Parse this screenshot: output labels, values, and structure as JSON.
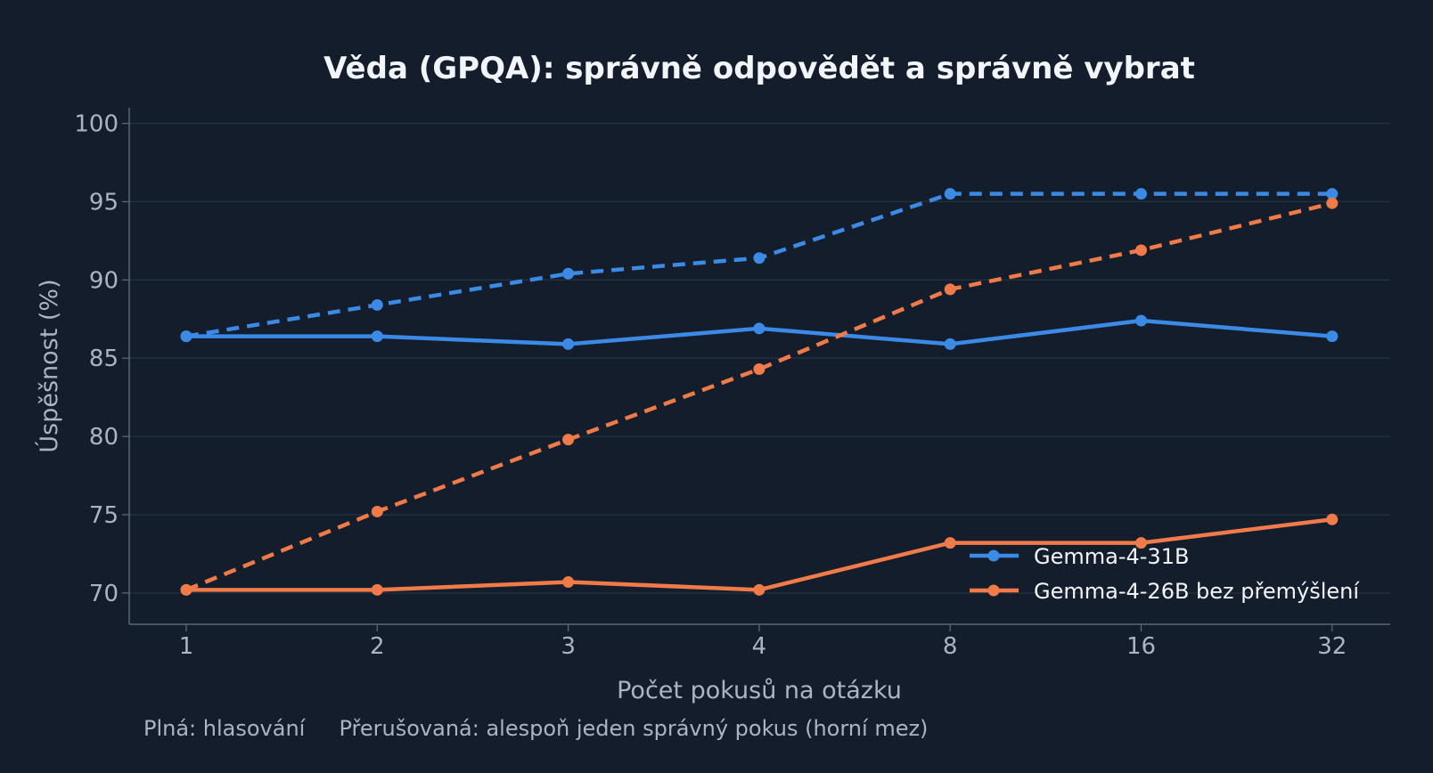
{
  "chart_data": {
    "type": "line",
    "title": "Věda (GPQA): správně odpovědět a správně vybrat",
    "xlabel": "Počet pokusů na otázku",
    "ylabel": "Úspěšnost (%)",
    "categories": [
      "1",
      "2",
      "3",
      "4",
      "8",
      "16",
      "32"
    ],
    "ylim": [
      68,
      101
    ],
    "yticks": [
      "70",
      "75",
      "80",
      "85",
      "90",
      "95",
      "100"
    ],
    "grid": true,
    "legend_position": "lower-right",
    "note": "Plná: hlasování     Přerušovaná: alespoň jeden správný pokus (horní mez)",
    "series": [
      {
        "name": "Gemma-4-31B",
        "color": "#3b8ae6",
        "voting": [
          86.4,
          86.4,
          85.9,
          86.9,
          85.9,
          87.4,
          86.4
        ],
        "upper_bound": [
          86.4,
          88.4,
          90.4,
          91.4,
          95.5,
          95.5,
          95.5
        ]
      },
      {
        "name": "Gemma-4-26B bez přemýšlení",
        "color": "#f07a48",
        "voting": [
          70.2,
          70.2,
          70.7,
          70.2,
          73.2,
          73.2,
          74.7
        ],
        "upper_bound": [
          70.2,
          75.2,
          79.8,
          84.3,
          89.4,
          91.9,
          94.9
        ]
      }
    ]
  }
}
